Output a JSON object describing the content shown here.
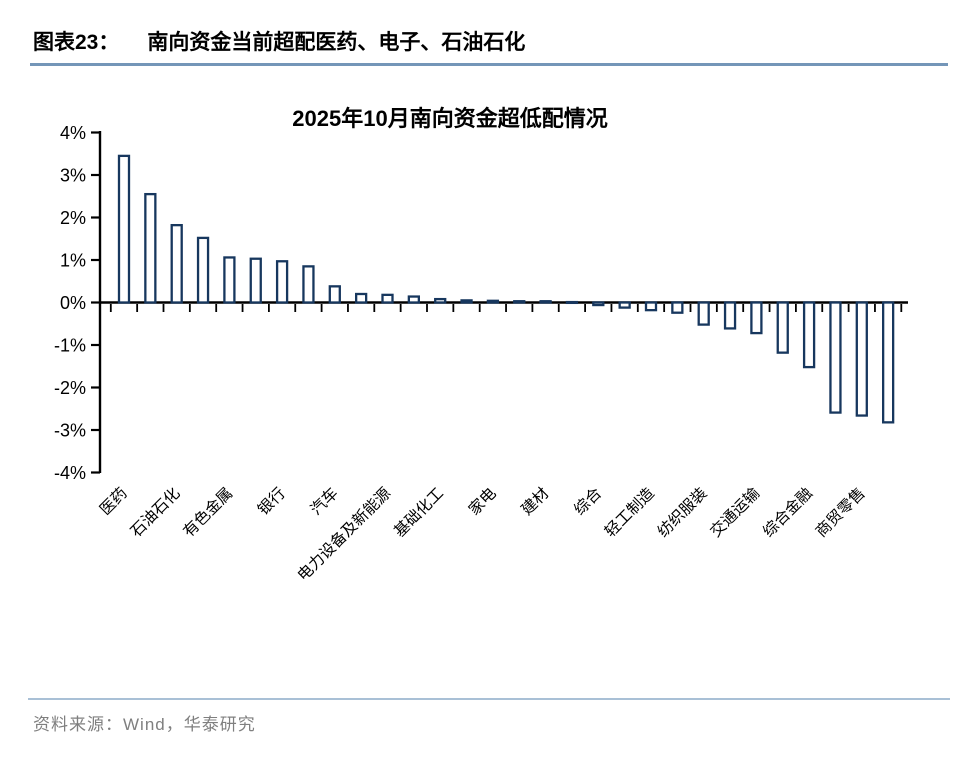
{
  "header": {
    "label": "图表23：",
    "title": "南向资金当前超配医药、电子、石油石化"
  },
  "chart_data": {
    "type": "bar",
    "title": "2025年10月南向资金超低配情况",
    "xlabel": "",
    "ylabel": "",
    "ylim": [
      -4,
      4
    ],
    "grid": false,
    "legend": "none",
    "unit": "%",
    "colors": {
      "bar_border": "#17375e",
      "bar_fill": "#ffffff",
      "axis": "#000000"
    },
    "yticks": [
      {
        "value": 4,
        "label": "4%"
      },
      {
        "value": 3,
        "label": "3%"
      },
      {
        "value": 2,
        "label": "2%"
      },
      {
        "value": 1,
        "label": "1%"
      },
      {
        "value": 0,
        "label": "0%"
      },
      {
        "value": -1,
        "label": "-1%"
      },
      {
        "value": -2,
        "label": "-2%"
      },
      {
        "value": -3,
        "label": "-3%"
      },
      {
        "value": -4,
        "label": "-4%"
      }
    ],
    "bars": [
      {
        "label": "医药",
        "value": 3.45
      },
      {
        "label": "",
        "value": 2.55
      },
      {
        "label": "石油石化",
        "value": 1.82
      },
      {
        "label": "",
        "value": 1.52
      },
      {
        "label": "有色金属",
        "value": 1.06
      },
      {
        "label": "",
        "value": 1.03
      },
      {
        "label": "银行",
        "value": 0.97
      },
      {
        "label": "",
        "value": 0.85
      },
      {
        "label": "汽车",
        "value": 0.38
      },
      {
        "label": "",
        "value": 0.2
      },
      {
        "label": "电力设备及新能源",
        "value": 0.18
      },
      {
        "label": "",
        "value": 0.14
      },
      {
        "label": "基础化工",
        "value": 0.08
      },
      {
        "label": "",
        "value": 0.05
      },
      {
        "label": "家电",
        "value": 0.04
      },
      {
        "label": "",
        "value": 0.03
      },
      {
        "label": "建材",
        "value": 0.03
      },
      {
        "label": "",
        "value": 0.01
      },
      {
        "label": "综合",
        "value": -0.06
      },
      {
        "label": "",
        "value": -0.12
      },
      {
        "label": "轻工制造",
        "value": -0.18
      },
      {
        "label": "",
        "value": -0.24
      },
      {
        "label": "纺织服装",
        "value": -0.52
      },
      {
        "label": "",
        "value": -0.61
      },
      {
        "label": "交通运输",
        "value": -0.72
      },
      {
        "label": "",
        "value": -1.18
      },
      {
        "label": "综合金融",
        "value": -1.52
      },
      {
        "label": "",
        "value": -2.59
      },
      {
        "label": "商贸零售",
        "value": -2.66
      },
      {
        "label": "",
        "value": -2.82
      }
    ]
  },
  "footer": {
    "source_label": "资料来源：",
    "source_text": "Wind，华泰研究"
  }
}
